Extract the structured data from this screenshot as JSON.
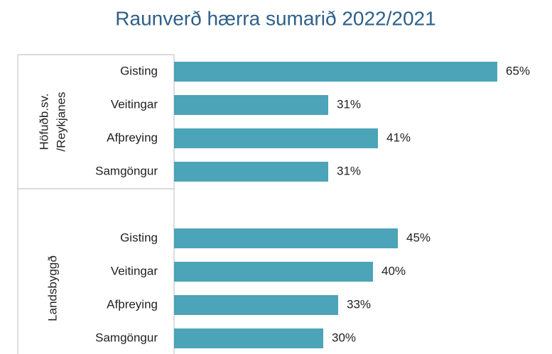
{
  "chart_data": {
    "type": "bar",
    "orientation": "horizontal",
    "title": "Raunverð hærra sumarið 2022/2021",
    "color": "#4ba4b8",
    "groups": [
      {
        "label": [
          "Höfuðb.sv.",
          "/Reykjanes"
        ],
        "categories": [
          "Gisting",
          "Veitingar",
          "Afþreying",
          "Samgöngur"
        ],
        "values": [
          65,
          31,
          41,
          31
        ],
        "value_labels": [
          "65%",
          "31%",
          "41%",
          "31%"
        ]
      },
      {
        "label": [
          "Landsbyggð"
        ],
        "categories": [
          "Gisting",
          "Veitingar",
          "Afþreying",
          "Samgöngur"
        ],
        "values": [
          45,
          40,
          33,
          30
        ],
        "value_labels": [
          "45%",
          "40%",
          "33%",
          "30%"
        ]
      }
    ]
  }
}
